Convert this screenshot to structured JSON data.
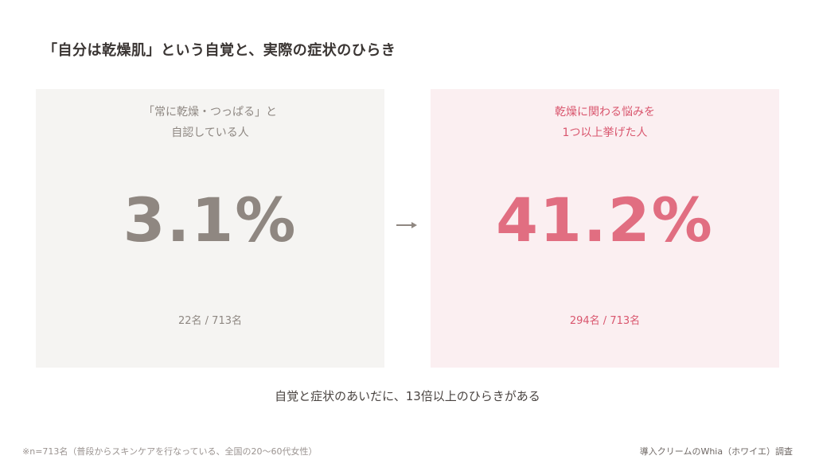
{
  "title": "「自分は乾燥肌」という自覚と、実際の症状のひらき",
  "chart_data": {
    "type": "table",
    "items": [
      {
        "label_lines": [
          "「常に乾燥・つっぱる」と",
          "自認している人"
        ],
        "value_text": "3.1%",
        "value": 3.1,
        "count_text": "22名 / 713名",
        "count": 22,
        "total": 713,
        "color": "#8f8781",
        "background": "#f5f4f2"
      },
      {
        "label_lines": [
          "乾燥に関わる悩みを",
          "1つ以上挙げた人"
        ],
        "value_text": "41.2%",
        "value": 41.2,
        "count_text": "294名 / 713名",
        "count": 294,
        "total": 713,
        "color": "#e16e81",
        "background": "#fbeff1"
      }
    ]
  },
  "arrow_icon": "arrow-right-icon",
  "conclusion": "自覚と症状のあいだに、13倍以上のひらきがある",
  "footnote": "※n=713名（普段からスキンケアを行なっている、全国の20〜60代女性）",
  "source": "導入クリームのWhia（ホワイエ）調査",
  "colors": {
    "title": "#3a3533",
    "left_accent": "#8f8781",
    "right_accent": "#e16e81",
    "right_text": "#d9566e"
  }
}
